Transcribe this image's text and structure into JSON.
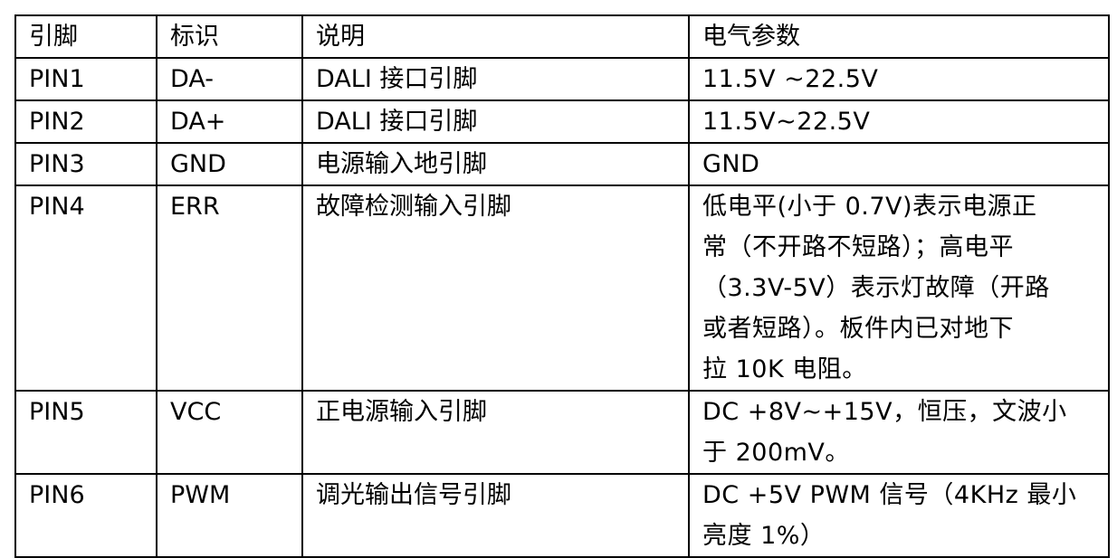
{
  "header": [
    "引脚",
    "标识",
    "说明",
    "电气参数"
  ],
  "rows": [
    {
      "pin": "PIN1",
      "id": "DA-",
      "desc": "DALI 接口引脚",
      "params": [
        "11.5V ~22.5V"
      ]
    },
    {
      "pin": "PIN2",
      "id": "DA+",
      "desc": "DALI 接口引脚",
      "params": [
        "11.5V~22.5V"
      ]
    },
    {
      "pin": "PIN3",
      "id": "GND",
      "desc": "电源输入地引脚",
      "params": [
        "GND"
      ]
    },
    {
      "pin": "PIN4",
      "id": "ERR",
      "desc": "故障检测输入引脚",
      "params": [
        "低电平(小于 0.7V)表示电源正",
        "常（不开路不短路）；高电平",
        "（3.3V-5V）表示灯故障（开路",
        "或者短路）。板件内已对地下",
        "拉 10K 电阻。"
      ]
    },
    {
      "pin": "PIN5",
      "id": "VCC",
      "desc": "正电源输入引脚",
      "params": [
        "DC +8V~+15V，恒压，文波小",
        "于 200mV。"
      ]
    },
    {
      "pin": "PIN6",
      "id": "PWM",
      "desc": "调光输出信号引脚",
      "params": [
        "DC +5V PWM 信号（4KHz 最小",
        "亮度 1%）"
      ]
    }
  ]
}
